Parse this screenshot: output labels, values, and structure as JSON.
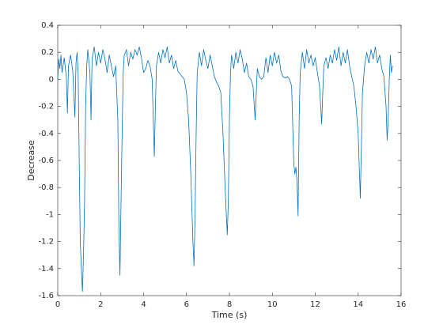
{
  "chart_data": {
    "type": "line",
    "xlabel": "Time (s)",
    "ylabel": "Decrease",
    "xlim": [
      0,
      16
    ],
    "xticks": [
      0,
      2,
      4,
      6,
      8,
      10,
      12,
      14,
      16
    ],
    "ylim": [
      -1.6,
      0.4
    ],
    "yticks": [
      -1.6,
      -1.4,
      -1.2,
      -1,
      -0.8,
      -0.6,
      -0.4,
      -0.2,
      0,
      0.2,
      0.4
    ],
    "grid": false,
    "series": [
      {
        "color": "#0072bd",
        "x": [
          0.0,
          0.05,
          0.1,
          0.15,
          0.2,
          0.3,
          0.4,
          0.45,
          0.5,
          0.6,
          0.7,
          0.8,
          0.85,
          0.9,
          0.95,
          1.0,
          1.05,
          1.1,
          1.15,
          1.2,
          1.25,
          1.3,
          1.35,
          1.4,
          1.5,
          1.55,
          1.6,
          1.7,
          1.8,
          1.9,
          2.0,
          2.1,
          2.2,
          2.3,
          2.4,
          2.5,
          2.6,
          2.7,
          2.8,
          2.85,
          2.9,
          2.95,
          3.0,
          3.05,
          3.1,
          3.2,
          3.3,
          3.4,
          3.5,
          3.6,
          3.7,
          3.8,
          3.9,
          4.0,
          4.1,
          4.2,
          4.3,
          4.4,
          4.5,
          4.55,
          4.6,
          4.7,
          4.8,
          4.9,
          5.0,
          5.1,
          5.2,
          5.3,
          5.4,
          5.5,
          5.6,
          5.7,
          5.8,
          5.9,
          6.0,
          6.1,
          6.2,
          6.3,
          6.35,
          6.4,
          6.45,
          6.5,
          6.6,
          6.7,
          6.8,
          6.9,
          7.0,
          7.1,
          7.2,
          7.3,
          7.4,
          7.5,
          7.6,
          7.7,
          7.8,
          7.9,
          7.95,
          8.0,
          8.05,
          8.1,
          8.2,
          8.3,
          8.4,
          8.5,
          8.6,
          8.7,
          8.8,
          8.9,
          9.0,
          9.1,
          9.2,
          9.3,
          9.4,
          9.5,
          9.6,
          9.7,
          9.8,
          9.9,
          10.0,
          10.1,
          10.2,
          10.3,
          10.4,
          10.5,
          10.6,
          10.7,
          10.8,
          10.9,
          11.0,
          11.05,
          11.1,
          11.15,
          11.2,
          11.25,
          11.3,
          11.4,
          11.5,
          11.6,
          11.7,
          11.8,
          11.9,
          12.0,
          12.1,
          12.2,
          12.3,
          12.35,
          12.4,
          12.5,
          12.6,
          12.7,
          12.8,
          12.9,
          13.0,
          13.1,
          13.2,
          13.3,
          13.4,
          13.5,
          13.6,
          13.7,
          13.8,
          13.9,
          14.0,
          14.1,
          14.15,
          14.2,
          14.3,
          14.4,
          14.5,
          14.6,
          14.7,
          14.8,
          14.9,
          15.0,
          15.1,
          15.2,
          15.3,
          15.35,
          15.4,
          15.45,
          15.5,
          15.55,
          15.6
        ],
        "values": [
          0.0,
          0.15,
          0.08,
          0.18,
          0.05,
          0.16,
          0.02,
          -0.25,
          0.1,
          0.18,
          0.06,
          -0.28,
          0.12,
          0.2,
          0.05,
          -0.6,
          -1.2,
          -1.4,
          -1.57,
          -1.3,
          -0.9,
          -0.2,
          0.1,
          0.22,
          0.05,
          -0.3,
          0.15,
          0.24,
          0.1,
          0.2,
          0.12,
          0.22,
          0.15,
          0.05,
          0.18,
          0.1,
          0.02,
          0.1,
          -0.3,
          -1.1,
          -1.45,
          -0.9,
          -0.4,
          0.05,
          0.18,
          0.22,
          0.1,
          0.2,
          0.15,
          0.22,
          0.18,
          0.24,
          0.16,
          0.05,
          0.08,
          0.14,
          0.1,
          0.0,
          -0.57,
          -0.2,
          0.1,
          0.2,
          0.12,
          0.22,
          0.16,
          0.24,
          0.12,
          0.18,
          0.08,
          0.14,
          0.06,
          0.04,
          0.02,
          0.0,
          -0.1,
          -0.3,
          -0.7,
          -1.2,
          -1.38,
          -1.0,
          -0.4,
          0.05,
          0.2,
          0.1,
          0.22,
          0.14,
          0.08,
          0.18,
          0.1,
          0.02,
          -0.02,
          -0.05,
          -0.1,
          -0.4,
          -0.8,
          -1.15,
          -0.9,
          -0.3,
          0.05,
          0.18,
          0.08,
          0.2,
          0.12,
          0.22,
          0.15,
          0.05,
          0.12,
          0.02,
          0.0,
          -0.05,
          -0.3,
          0.08,
          0.02,
          0.0,
          0.02,
          0.16,
          0.05,
          0.18,
          0.1,
          0.2,
          0.12,
          0.18,
          0.06,
          0.02,
          0.01,
          0.02,
          0.0,
          -0.05,
          -0.62,
          -0.7,
          -0.65,
          -0.75,
          -1.01,
          -0.3,
          0.05,
          0.2,
          0.08,
          0.22,
          0.12,
          0.18,
          0.1,
          0.16,
          0.05,
          -0.05,
          -0.33,
          -0.1,
          0.1,
          0.16,
          0.08,
          0.18,
          0.12,
          0.22,
          0.14,
          0.24,
          0.1,
          0.2,
          0.12,
          0.22,
          0.1,
          0.02,
          -0.05,
          -0.2,
          -0.4,
          -0.88,
          -0.5,
          -0.1,
          0.1,
          0.2,
          0.12,
          0.22,
          0.15,
          0.24,
          0.12,
          0.18,
          0.08,
          0.02,
          -0.2,
          -0.45,
          -0.3,
          0.0,
          0.18,
          0.05,
          0.1
        ]
      }
    ]
  }
}
